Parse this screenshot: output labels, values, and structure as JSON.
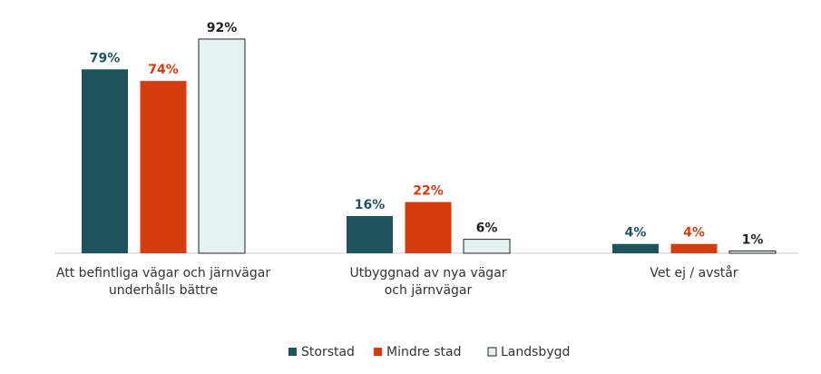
{
  "chart_data": {
    "type": "bar",
    "categories": [
      [
        "Att befintliga vägar och järnvägar",
        "underhålls bättre"
      ],
      [
        "Utbyggnad av nya vägar",
        "och järnvägar"
      ],
      [
        "Vet ej / avstår"
      ]
    ],
    "series": [
      {
        "name": "Storstad",
        "values": [
          79,
          16,
          4
        ],
        "labels": [
          "79%",
          "16%",
          "4%"
        ],
        "color": "#1e535b",
        "label_color": "#1e535b"
      },
      {
        "name": "Mindre stad",
        "values": [
          74,
          22,
          4
        ],
        "labels": [
          "74%",
          "22%",
          "4%"
        ],
        "color": "#d43d0f",
        "label_color": "#d43d0f"
      },
      {
        "name": "Landsbygd",
        "values": [
          92,
          6,
          1
        ],
        "labels": [
          "92%",
          "6%",
          "1%"
        ],
        "color": "#e6f2f2",
        "label_color": "#222222",
        "stroke": "#222222"
      }
    ],
    "ylim": [
      0,
      100
    ],
    "grid": false,
    "legend": "bottom-center"
  }
}
